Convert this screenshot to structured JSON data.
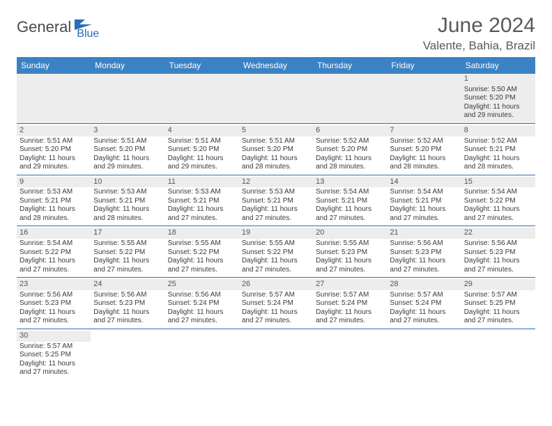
{
  "logo": {
    "main": "General",
    "sub": "Blue"
  },
  "title": "June 2024",
  "location": "Valente, Bahia, Brazil",
  "weekdays": [
    "Sunday",
    "Monday",
    "Tuesday",
    "Wednesday",
    "Thursday",
    "Friday",
    "Saturday"
  ],
  "colors": {
    "header_bg": "#3b82c4",
    "border": "#2a6db8",
    "shade": "#ededed",
    "text": "#3a3a3a",
    "title": "#595959"
  },
  "weeks": [
    [
      {
        "empty": true
      },
      {
        "empty": true
      },
      {
        "empty": true
      },
      {
        "empty": true
      },
      {
        "empty": true
      },
      {
        "empty": true
      },
      {
        "num": "1",
        "sunrise": "Sunrise: 5:50 AM",
        "sunset": "Sunset: 5:20 PM",
        "day1": "Daylight: 11 hours",
        "day2": "and 29 minutes."
      }
    ],
    [
      {
        "num": "2",
        "sunrise": "Sunrise: 5:51 AM",
        "sunset": "Sunset: 5:20 PM",
        "day1": "Daylight: 11 hours",
        "day2": "and 29 minutes."
      },
      {
        "num": "3",
        "sunrise": "Sunrise: 5:51 AM",
        "sunset": "Sunset: 5:20 PM",
        "day1": "Daylight: 11 hours",
        "day2": "and 29 minutes."
      },
      {
        "num": "4",
        "sunrise": "Sunrise: 5:51 AM",
        "sunset": "Sunset: 5:20 PM",
        "day1": "Daylight: 11 hours",
        "day2": "and 29 minutes."
      },
      {
        "num": "5",
        "sunrise": "Sunrise: 5:51 AM",
        "sunset": "Sunset: 5:20 PM",
        "day1": "Daylight: 11 hours",
        "day2": "and 28 minutes."
      },
      {
        "num": "6",
        "sunrise": "Sunrise: 5:52 AM",
        "sunset": "Sunset: 5:20 PM",
        "day1": "Daylight: 11 hours",
        "day2": "and 28 minutes."
      },
      {
        "num": "7",
        "sunrise": "Sunrise: 5:52 AM",
        "sunset": "Sunset: 5:20 PM",
        "day1": "Daylight: 11 hours",
        "day2": "and 28 minutes."
      },
      {
        "num": "8",
        "sunrise": "Sunrise: 5:52 AM",
        "sunset": "Sunset: 5:21 PM",
        "day1": "Daylight: 11 hours",
        "day2": "and 28 minutes."
      }
    ],
    [
      {
        "num": "9",
        "sunrise": "Sunrise: 5:53 AM",
        "sunset": "Sunset: 5:21 PM",
        "day1": "Daylight: 11 hours",
        "day2": "and 28 minutes."
      },
      {
        "num": "10",
        "sunrise": "Sunrise: 5:53 AM",
        "sunset": "Sunset: 5:21 PM",
        "day1": "Daylight: 11 hours",
        "day2": "and 28 minutes."
      },
      {
        "num": "11",
        "sunrise": "Sunrise: 5:53 AM",
        "sunset": "Sunset: 5:21 PM",
        "day1": "Daylight: 11 hours",
        "day2": "and 27 minutes."
      },
      {
        "num": "12",
        "sunrise": "Sunrise: 5:53 AM",
        "sunset": "Sunset: 5:21 PM",
        "day1": "Daylight: 11 hours",
        "day2": "and 27 minutes."
      },
      {
        "num": "13",
        "sunrise": "Sunrise: 5:54 AM",
        "sunset": "Sunset: 5:21 PM",
        "day1": "Daylight: 11 hours",
        "day2": "and 27 minutes."
      },
      {
        "num": "14",
        "sunrise": "Sunrise: 5:54 AM",
        "sunset": "Sunset: 5:21 PM",
        "day1": "Daylight: 11 hours",
        "day2": "and 27 minutes."
      },
      {
        "num": "15",
        "sunrise": "Sunrise: 5:54 AM",
        "sunset": "Sunset: 5:22 PM",
        "day1": "Daylight: 11 hours",
        "day2": "and 27 minutes."
      }
    ],
    [
      {
        "num": "16",
        "sunrise": "Sunrise: 5:54 AM",
        "sunset": "Sunset: 5:22 PM",
        "day1": "Daylight: 11 hours",
        "day2": "and 27 minutes."
      },
      {
        "num": "17",
        "sunrise": "Sunrise: 5:55 AM",
        "sunset": "Sunset: 5:22 PM",
        "day1": "Daylight: 11 hours",
        "day2": "and 27 minutes."
      },
      {
        "num": "18",
        "sunrise": "Sunrise: 5:55 AM",
        "sunset": "Sunset: 5:22 PM",
        "day1": "Daylight: 11 hours",
        "day2": "and 27 minutes."
      },
      {
        "num": "19",
        "sunrise": "Sunrise: 5:55 AM",
        "sunset": "Sunset: 5:22 PM",
        "day1": "Daylight: 11 hours",
        "day2": "and 27 minutes."
      },
      {
        "num": "20",
        "sunrise": "Sunrise: 5:55 AM",
        "sunset": "Sunset: 5:23 PM",
        "day1": "Daylight: 11 hours",
        "day2": "and 27 minutes."
      },
      {
        "num": "21",
        "sunrise": "Sunrise: 5:56 AM",
        "sunset": "Sunset: 5:23 PM",
        "day1": "Daylight: 11 hours",
        "day2": "and 27 minutes."
      },
      {
        "num": "22",
        "sunrise": "Sunrise: 5:56 AM",
        "sunset": "Sunset: 5:23 PM",
        "day1": "Daylight: 11 hours",
        "day2": "and 27 minutes."
      }
    ],
    [
      {
        "num": "23",
        "sunrise": "Sunrise: 5:56 AM",
        "sunset": "Sunset: 5:23 PM",
        "day1": "Daylight: 11 hours",
        "day2": "and 27 minutes."
      },
      {
        "num": "24",
        "sunrise": "Sunrise: 5:56 AM",
        "sunset": "Sunset: 5:23 PM",
        "day1": "Daylight: 11 hours",
        "day2": "and 27 minutes."
      },
      {
        "num": "25",
        "sunrise": "Sunrise: 5:56 AM",
        "sunset": "Sunset: 5:24 PM",
        "day1": "Daylight: 11 hours",
        "day2": "and 27 minutes."
      },
      {
        "num": "26",
        "sunrise": "Sunrise: 5:57 AM",
        "sunset": "Sunset: 5:24 PM",
        "day1": "Daylight: 11 hours",
        "day2": "and 27 minutes."
      },
      {
        "num": "27",
        "sunrise": "Sunrise: 5:57 AM",
        "sunset": "Sunset: 5:24 PM",
        "day1": "Daylight: 11 hours",
        "day2": "and 27 minutes."
      },
      {
        "num": "28",
        "sunrise": "Sunrise: 5:57 AM",
        "sunset": "Sunset: 5:24 PM",
        "day1": "Daylight: 11 hours",
        "day2": "and 27 minutes."
      },
      {
        "num": "29",
        "sunrise": "Sunrise: 5:57 AM",
        "sunset": "Sunset: 5:25 PM",
        "day1": "Daylight: 11 hours",
        "day2": "and 27 minutes."
      }
    ],
    [
      {
        "num": "30",
        "sunrise": "Sunrise: 5:57 AM",
        "sunset": "Sunset: 5:25 PM",
        "day1": "Daylight: 11 hours",
        "day2": "and 27 minutes."
      },
      {
        "empty": true
      },
      {
        "empty": true
      },
      {
        "empty": true
      },
      {
        "empty": true
      },
      {
        "empty": true
      },
      {
        "empty": true
      }
    ]
  ]
}
